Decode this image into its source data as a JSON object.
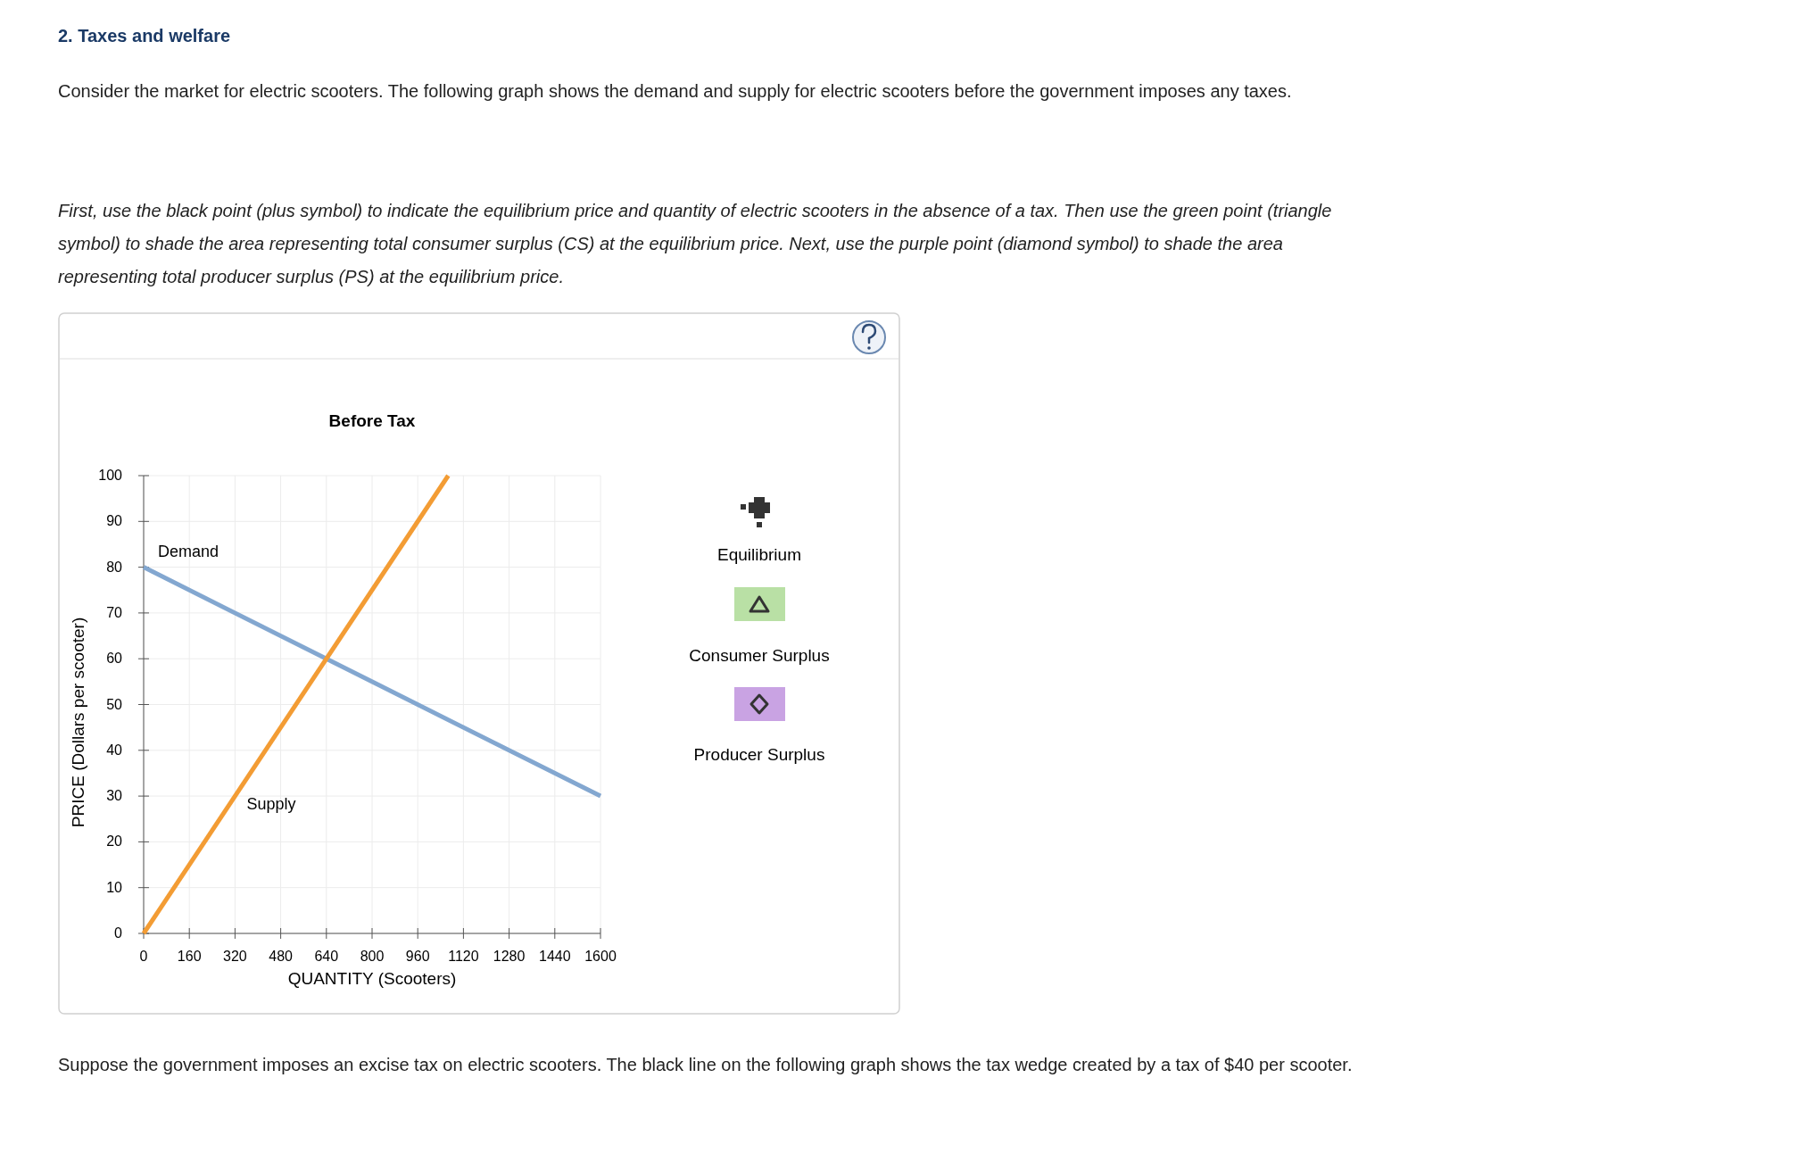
{
  "chart_data": {
    "type": "line",
    "title": "Before Tax",
    "xlabel": "QUANTITY (Scooters)",
    "ylabel": "PRICE (Dollars per scooter)",
    "series": [
      {
        "name": "Demand",
        "color": "#83a7d0",
        "x": [
          0,
          1600
        ],
        "values": [
          80,
          30
        ]
      },
      {
        "name": "Supply",
        "color": "#f39c34",
        "x": [
          0,
          1066.7
        ],
        "values": [
          0,
          100
        ]
      }
    ],
    "xlim": [
      0,
      1600
    ],
    "xticks": [
      0,
      160,
      320,
      480,
      640,
      800,
      960,
      1120,
      1280,
      1440,
      1600
    ],
    "ylim": [
      0,
      100
    ],
    "yticks": [
      0,
      10,
      20,
      30,
      40,
      50,
      60,
      70,
      80,
      90,
      100
    ],
    "grid": true,
    "marker": "none",
    "line_style": "solid",
    "annotations": [
      "2. Taxes and welfare",
      "Consider the market for electric scooters. The following graph shows the demand and supply for electric scooters before the government imposes any taxes.",
      "First, use the black point (plus symbol) to indicate the equilibrium price and quantity of electric scooters in the absence of a tax. Then use the green point (triangle symbol) to shade the area representing total consumer surplus (CS) at the equilibrium price. Next, use the purple point (diamond symbol) to shade the area representing total producer surplus (PS) at the equilibrium price.",
      "Equilibrium",
      "Consumer Surplus",
      "Producer Surplus",
      "Suppose the government imposes an excise tax on electric scooters. The black line on the following graph shows the tax wedge created by a tax of $40 per scooter."
    ]
  }
}
